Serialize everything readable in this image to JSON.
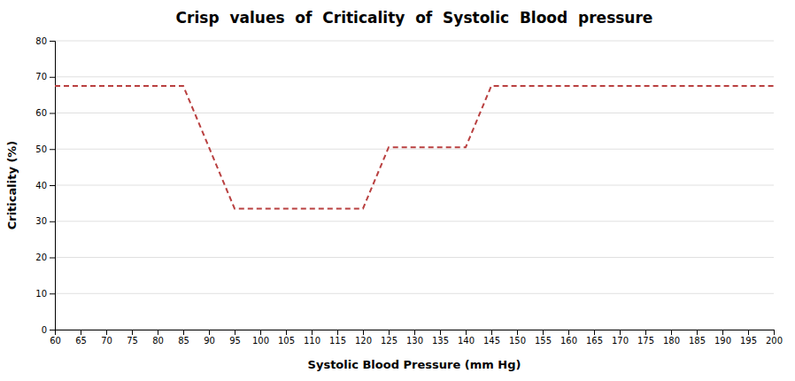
{
  "chart_data": {
    "type": "line",
    "title": "Crisp  values  of  Criticality  of  Systolic  Blood  pressure",
    "xlabel": "Systolic Blood Pressure (mm Hg)",
    "ylabel": "Criticality (%)",
    "x": [
      60,
      65,
      70,
      75,
      80,
      85,
      90,
      95,
      100,
      105,
      110,
      115,
      120,
      125,
      130,
      135,
      140,
      145,
      150,
      155,
      160,
      165,
      170,
      175,
      180,
      185,
      190,
      195,
      200
    ],
    "values": [
      67.5,
      67.5,
      67.5,
      67.5,
      67.5,
      67.5,
      50.5,
      33.5,
      33.5,
      33.5,
      33.5,
      33.5,
      33.5,
      50.5,
      50.5,
      50.5,
      50.5,
      67.5,
      67.5,
      67.5,
      67.5,
      67.5,
      67.5,
      67.5,
      67.5,
      67.5,
      67.5,
      67.5,
      67.5
    ],
    "color": "#b94040",
    "line_style": "dashed",
    "xlim": [
      60,
      200
    ],
    "ylim": [
      0,
      80
    ],
    "xticks": [
      60,
      65,
      70,
      75,
      80,
      85,
      90,
      95,
      100,
      105,
      110,
      115,
      120,
      125,
      130,
      135,
      140,
      145,
      150,
      155,
      160,
      165,
      170,
      175,
      180,
      185,
      190,
      195,
      200
    ],
    "yticks": [
      0,
      10,
      20,
      30,
      40,
      50,
      60,
      70,
      80
    ],
    "grid": "y"
  }
}
